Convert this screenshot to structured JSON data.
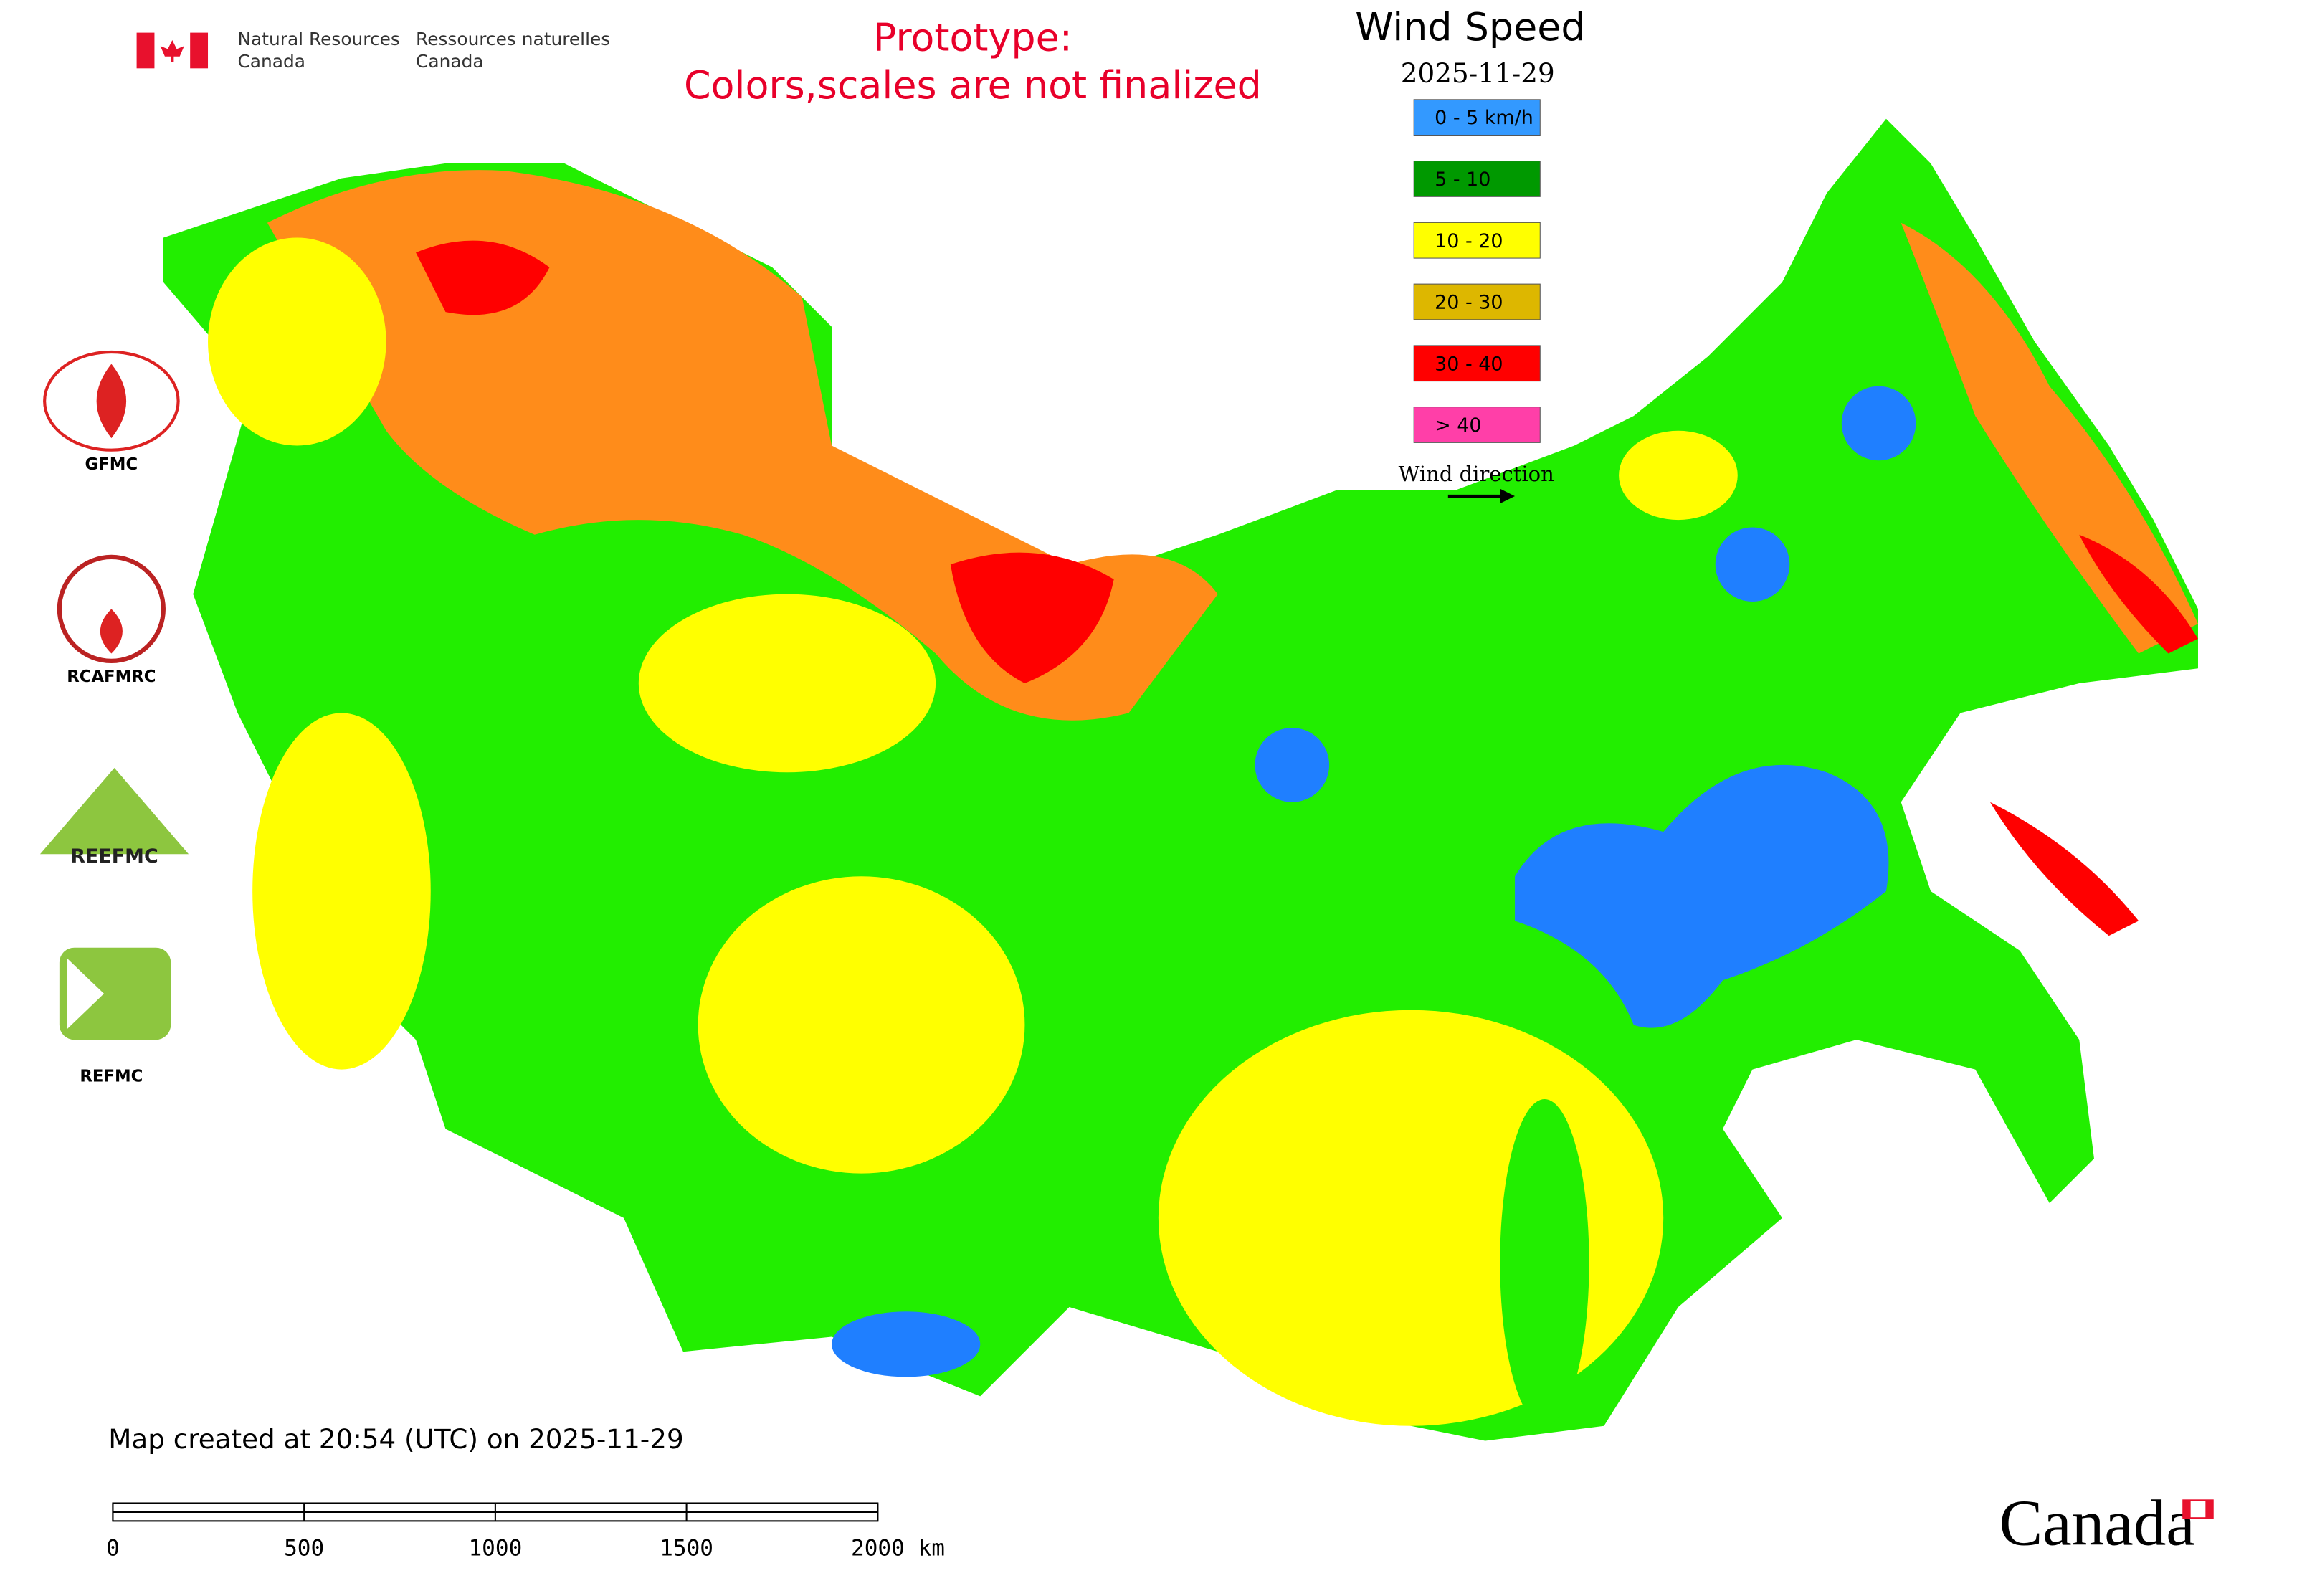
{
  "header": {
    "agency_en": [
      "Natural Resources",
      "Canada"
    ],
    "agency_fr": [
      "Ressources naturelles",
      "Canada"
    ],
    "notice": [
      "Prototype:",
      "Colors,scales are not finalized"
    ]
  },
  "legend": {
    "title": "Wind Speed",
    "date": "2025-11-29",
    "items": [
      {
        "label": "0 - 5 km/h",
        "color": "#3399ff"
      },
      {
        "label": "5 - 10",
        "color": "#009900"
      },
      {
        "label": "10 - 20",
        "color": "#ffff00"
      },
      {
        "label": "20 - 30",
        "color": "#ddb700"
      },
      {
        "label": "30 - 40",
        "color": "#ff0000"
      },
      {
        "label": "> 40",
        "color": "#ff3fa8"
      }
    ],
    "direction": "Wind direction"
  },
  "logos": [
    "GFMC",
    "RCAFMRC",
    "REEFMC",
    "REFMC"
  ],
  "footer": {
    "created": "Map created at 20:54 (UTC) on 2025-11-29",
    "scale_labels": [
      "0",
      "500",
      "1000",
      "1500",
      "2000 km"
    ],
    "wordmark": "Canada"
  }
}
